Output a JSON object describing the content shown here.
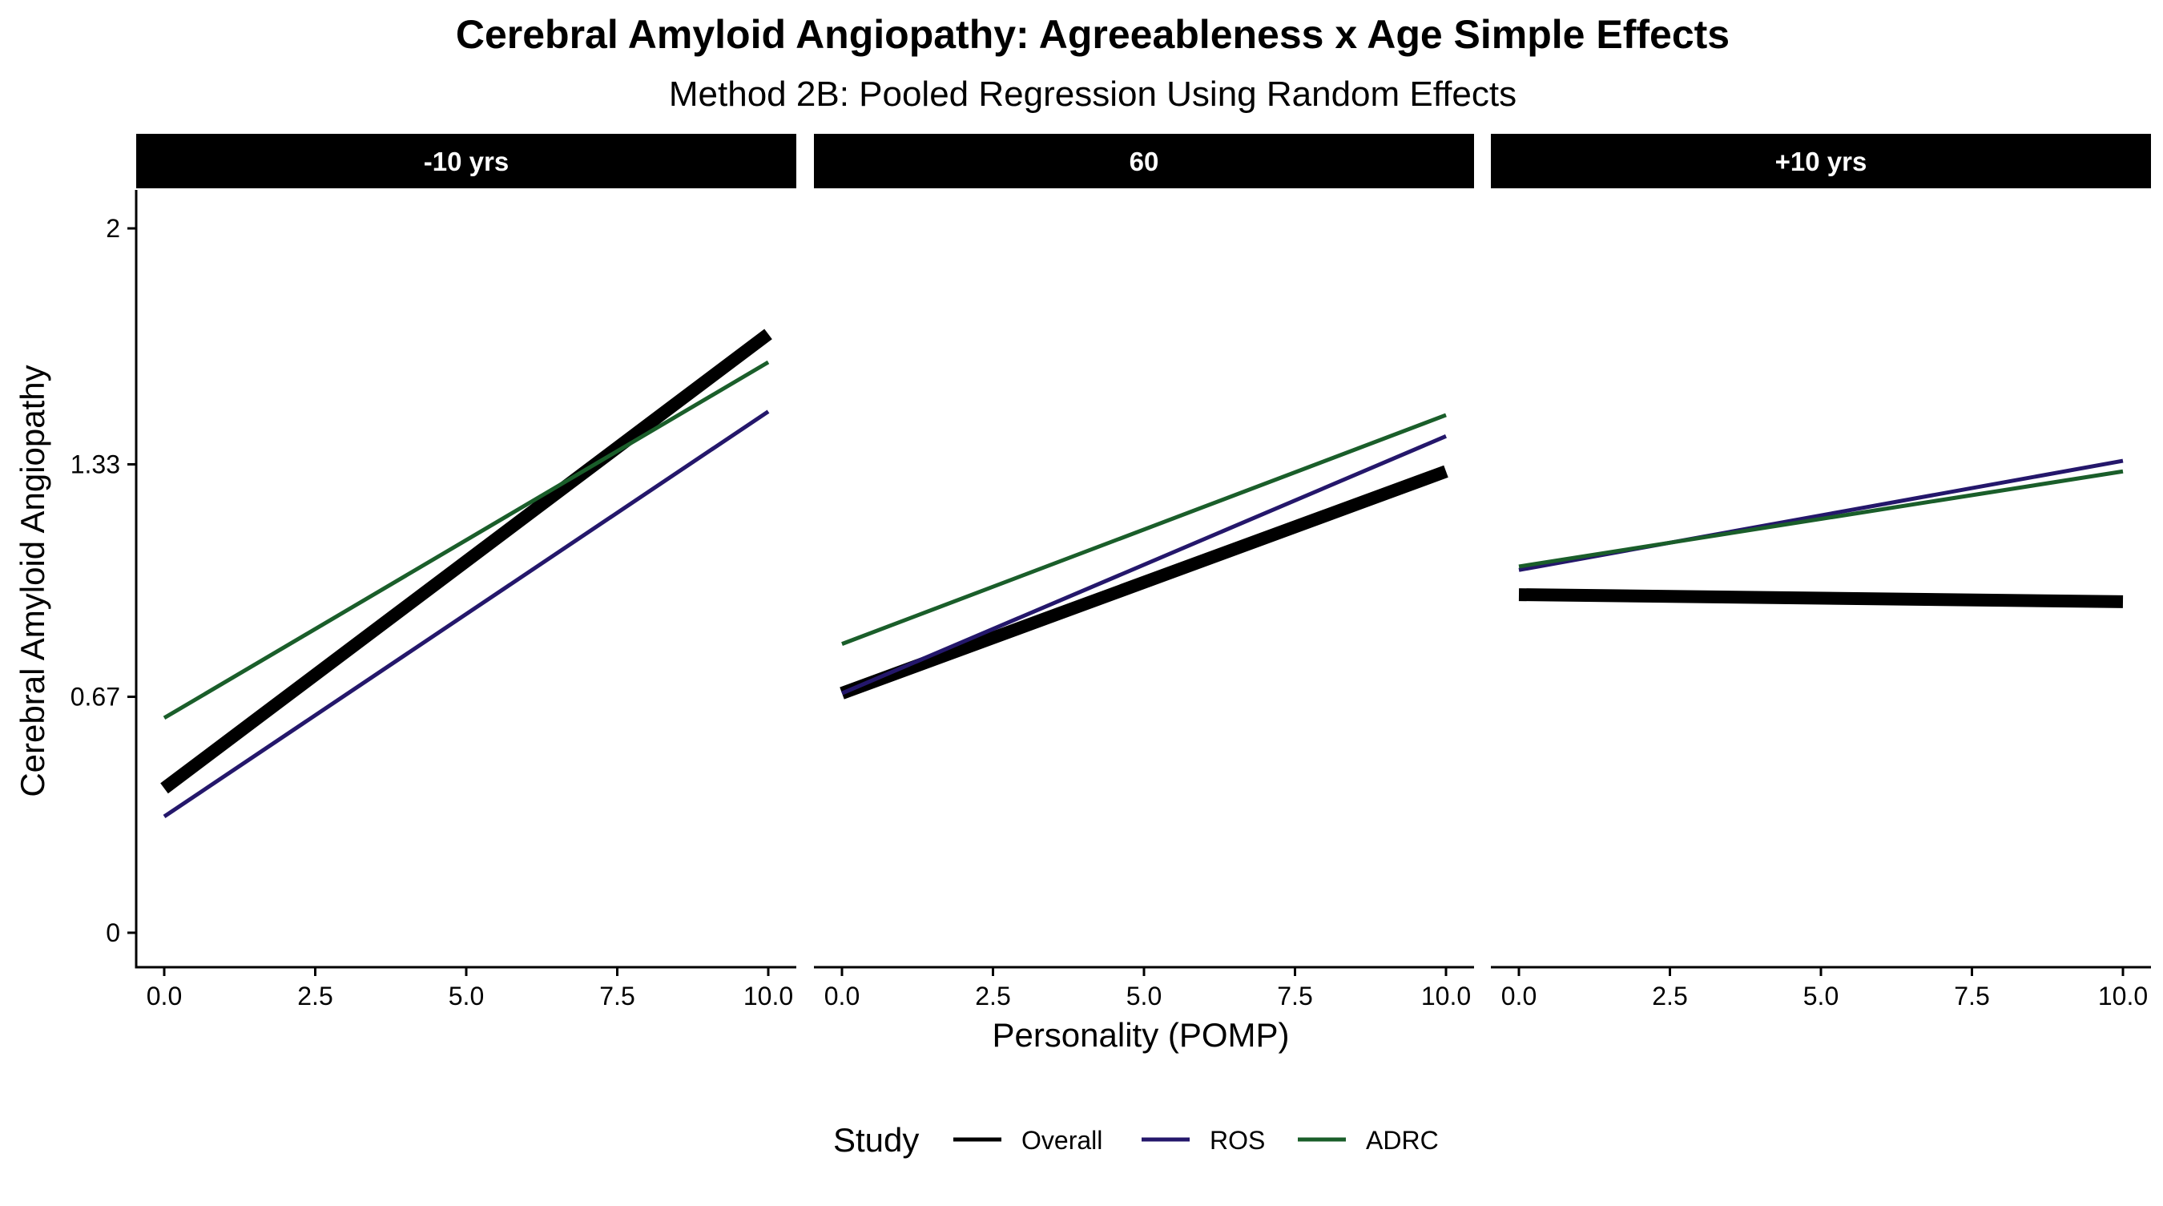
{
  "chart_data": {
    "type": "line",
    "title": "Cerebral Amyloid Angiopathy: Agreeableness x Age Simple Effects",
    "subtitle": "Method 2B: Pooled Regression Using Random Effects",
    "xlabel": "Personality (POMP)",
    "ylabel": "Cerebral Amyloid Angiopathy",
    "xlim": [
      0,
      10
    ],
    "ylim": [
      0,
      2
    ],
    "x_ticks": [
      0,
      2.5,
      5,
      7.5,
      10
    ],
    "x_tick_labels": [
      "0.0",
      "2.5",
      "5.0",
      "7.5",
      "10.0"
    ],
    "y_ticks": [
      0,
      0.67,
      1.33,
      2
    ],
    "y_tick_labels": [
      "0",
      "0.67",
      "1.33",
      "2"
    ],
    "grid": false,
    "legend_position": "bottom",
    "legend_title": "Study",
    "legend": [
      {
        "label": "Overall",
        "color": "#000000"
      },
      {
        "label": "ROS",
        "color": "#24176b"
      },
      {
        "label": "ADRC",
        "color": "#1a5e2a"
      }
    ],
    "panels": [
      {
        "label": "-10 yrs",
        "series": [
          {
            "name": "Overall",
            "color": "#000000",
            "x": [
              0,
              10
            ],
            "y": [
              0.41,
              1.7
            ]
          },
          {
            "name": "ROS",
            "color": "#24176b",
            "x": [
              0,
              10
            ],
            "y": [
              0.33,
              1.48
            ]
          },
          {
            "name": "ADRC",
            "color": "#1a5e2a",
            "x": [
              0,
              10
            ],
            "y": [
              0.61,
              1.62
            ]
          }
        ]
      },
      {
        "label": "60",
        "series": [
          {
            "name": "Overall",
            "color": "#000000",
            "x": [
              0,
              10
            ],
            "y": [
              0.68,
              1.31
            ]
          },
          {
            "name": "ROS",
            "color": "#24176b",
            "x": [
              0,
              10
            ],
            "y": [
              0.68,
              1.41
            ]
          },
          {
            "name": "ADRC",
            "color": "#1a5e2a",
            "x": [
              0,
              10
            ],
            "y": [
              0.82,
              1.47
            ]
          }
        ]
      },
      {
        "label": "+10 yrs",
        "series": [
          {
            "name": "Overall",
            "color": "#000000",
            "x": [
              0,
              10
            ],
            "y": [
              0.96,
              0.94
            ]
          },
          {
            "name": "ROS",
            "color": "#24176b",
            "x": [
              0,
              10
            ],
            "y": [
              1.03,
              1.34
            ]
          },
          {
            "name": "ADRC",
            "color": "#1a5e2a",
            "x": [
              0,
              10
            ],
            "y": [
              1.04,
              1.31
            ]
          }
        ]
      }
    ]
  }
}
